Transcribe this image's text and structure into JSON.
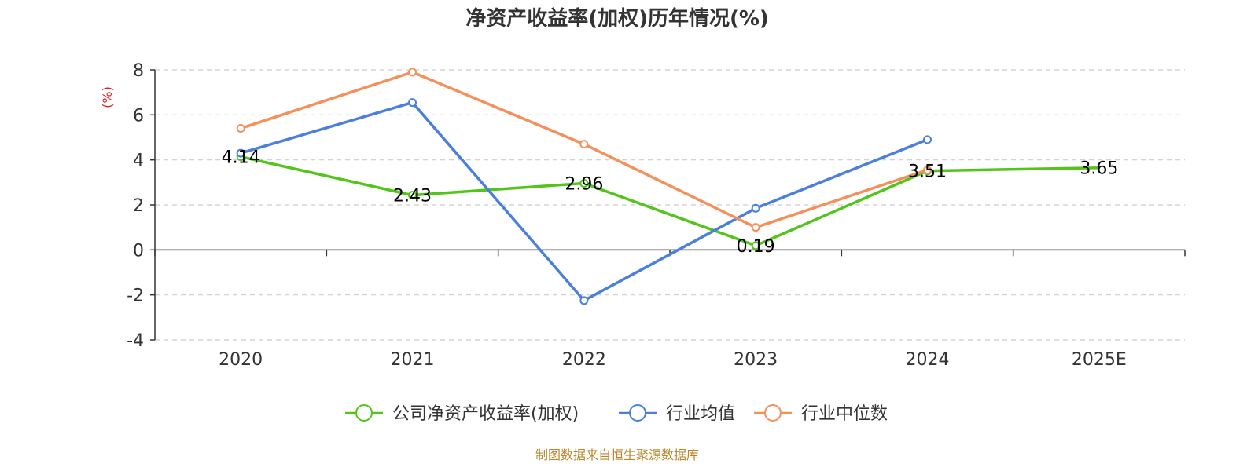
{
  "chart_data": {
    "type": "line",
    "title": "净资产收益率(加权)历年情况(%)",
    "ylabel": "(%)",
    "categories": [
      "2020",
      "2021",
      "2022",
      "2023",
      "2024",
      "2025E"
    ],
    "ylim": [
      -4,
      8
    ],
    "yticks": [
      8,
      6,
      4,
      2,
      0,
      -2,
      -4
    ],
    "grid": true,
    "legend_position": "bottom-center",
    "series": [
      {
        "name": "公司净资产收益率(加权)",
        "color": "#52c41a",
        "values": [
          4.14,
          2.43,
          2.96,
          0.19,
          3.51,
          3.65
        ],
        "labels": [
          "4.14",
          "2.43",
          "2.96",
          "0.19",
          "3.51",
          "3.65"
        ]
      },
      {
        "name": "行业均值",
        "color": "#4a7fdc",
        "values": [
          4.3,
          6.55,
          -2.25,
          1.85,
          4.9,
          null
        ]
      },
      {
        "name": "行业中位数",
        "color": "#f4905b",
        "values": [
          5.4,
          7.9,
          4.7,
          1.0,
          3.55,
          null
        ]
      }
    ]
  },
  "footer": {
    "source": "制图数据来自恒生聚源数据库"
  }
}
